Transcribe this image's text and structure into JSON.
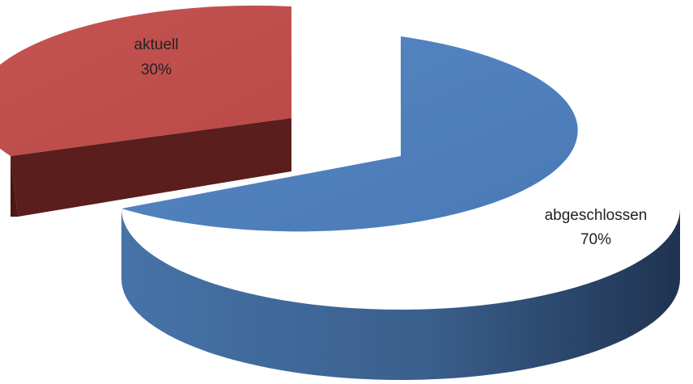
{
  "chart_data": {
    "type": "pie",
    "variant": "3d-exploded",
    "slices": [
      {
        "label": "abgeschlossen",
        "value": 70,
        "percent_label": "70%",
        "color": "#4f81bd",
        "side_color": "#2f4f77"
      },
      {
        "label": "aktuell",
        "value": 30,
        "percent_label": "30%",
        "color": "#c0504d",
        "side_color": "#5a1e1c",
        "exploded": true
      }
    ],
    "legend": "none",
    "title": ""
  }
}
